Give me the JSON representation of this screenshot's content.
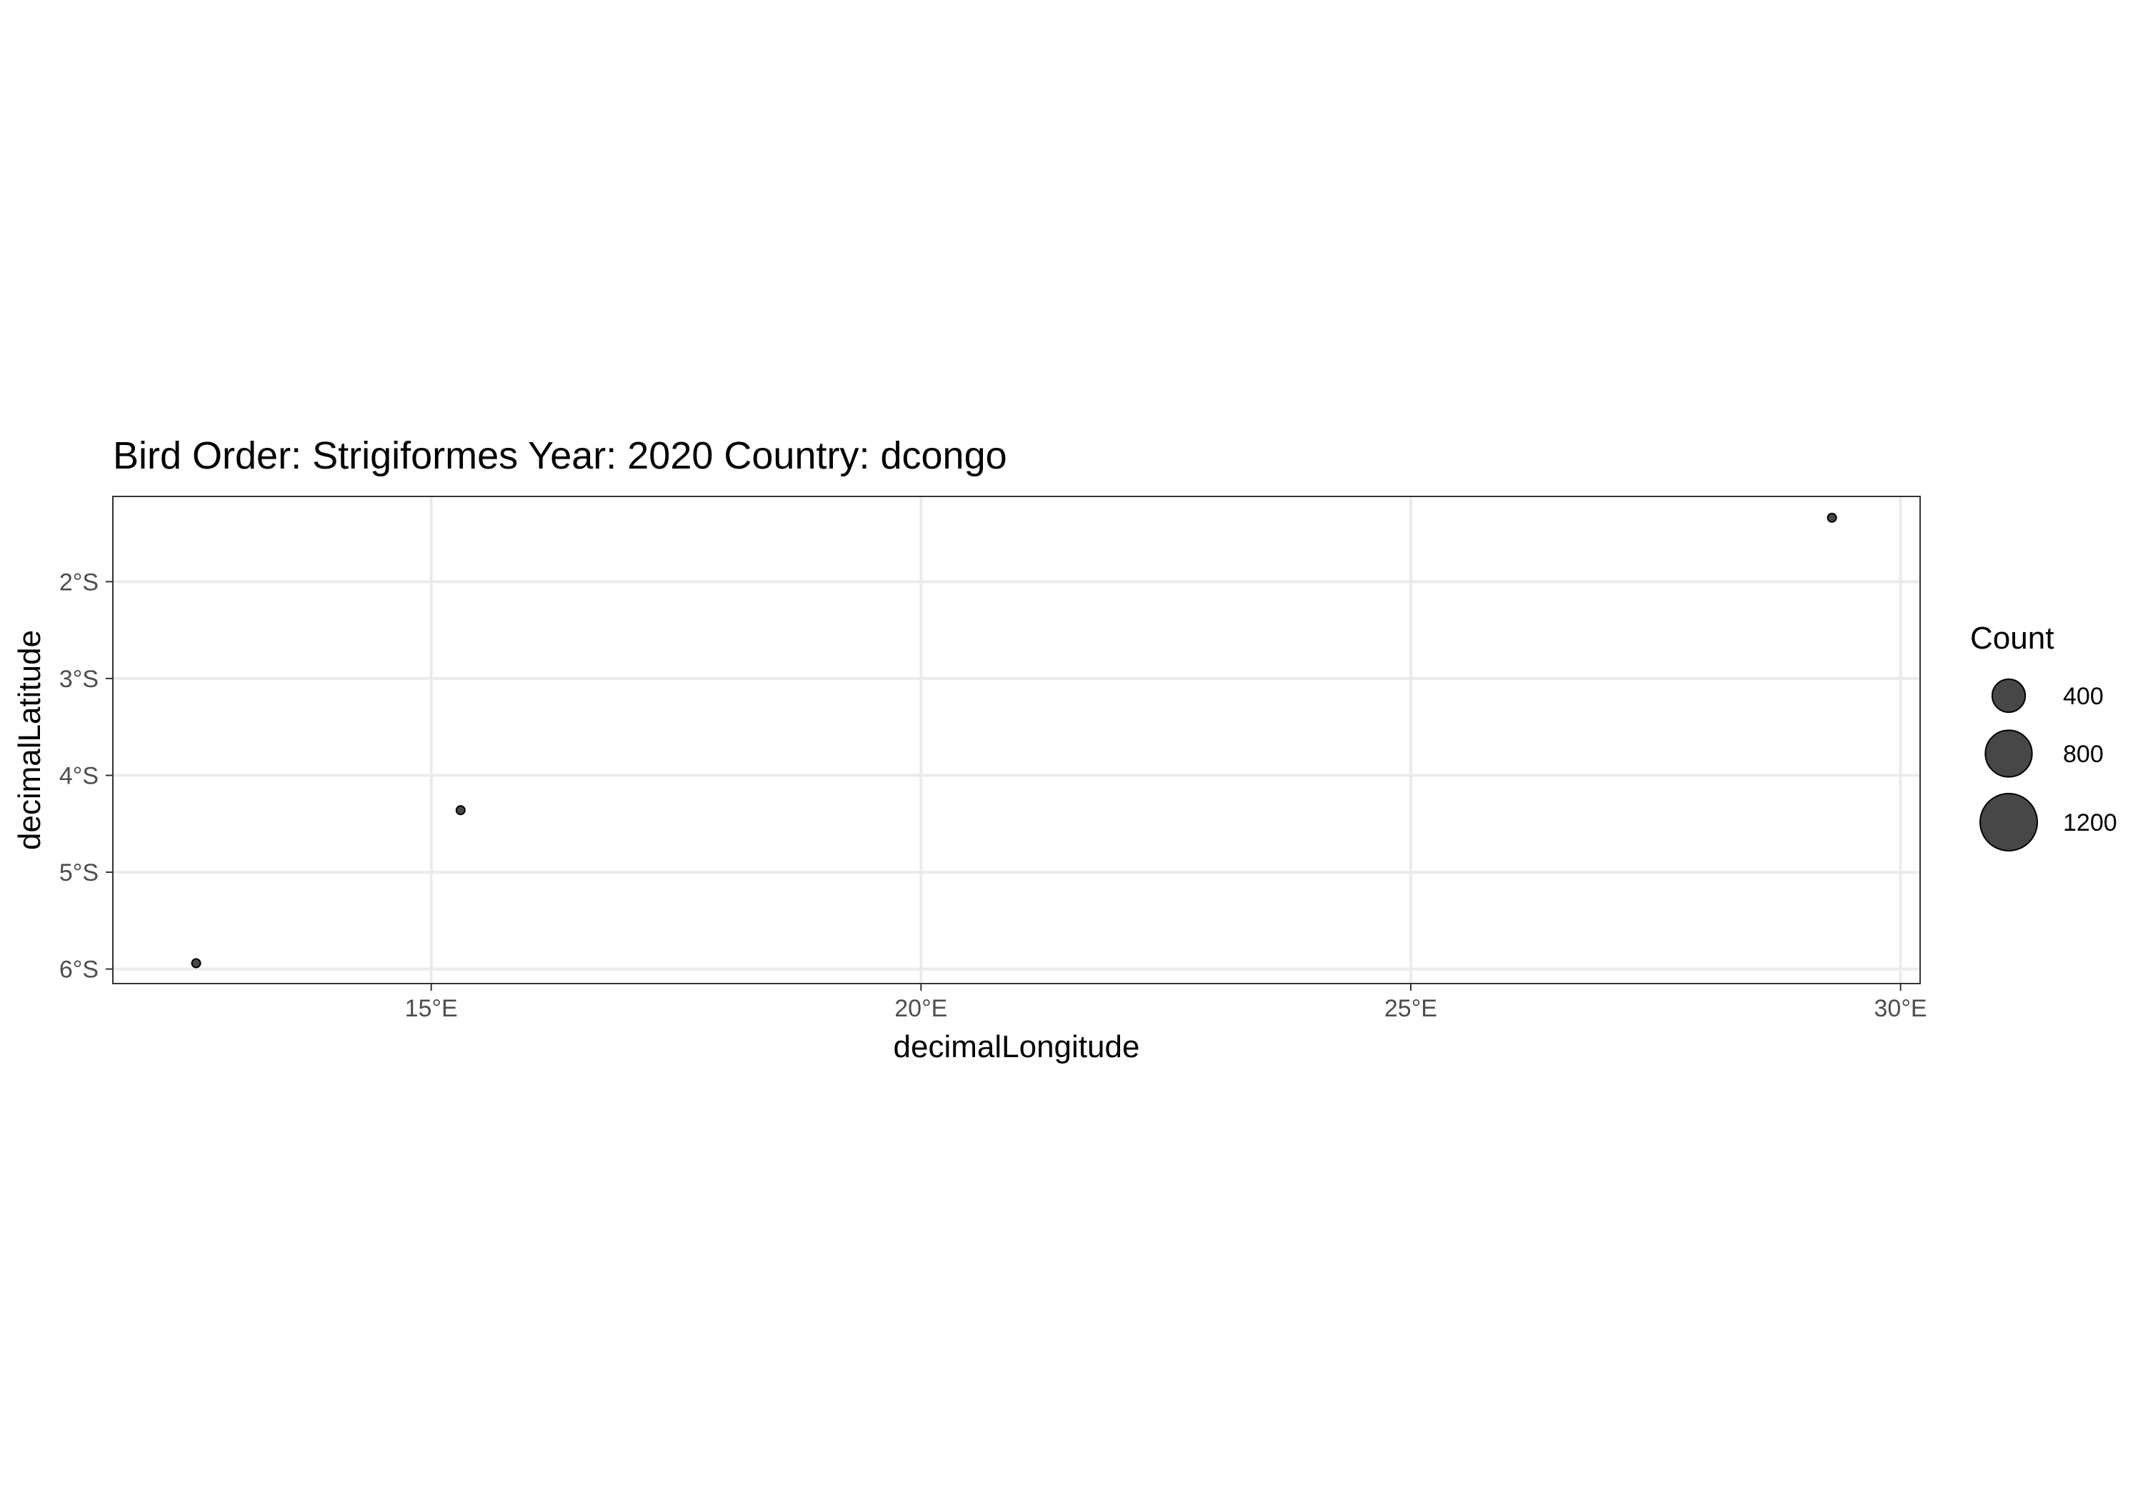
{
  "chart_data": {
    "type": "scatter",
    "title": "Bird Order: Strigiformes Year: 2020 Country: dcongo",
    "xlabel": "decimalLongitude",
    "ylabel": "decimalLatitude",
    "xlim": [
      11.75,
      30.2
    ],
    "ylim": [
      -6.15,
      -1.12
    ],
    "x_ticks": [
      {
        "value": 15,
        "label": "15°E"
      },
      {
        "value": 20,
        "label": "20°E"
      },
      {
        "value": 25,
        "label": "25°E"
      },
      {
        "value": 30,
        "label": "30°E"
      }
    ],
    "y_ticks": [
      {
        "value": -2,
        "label": "2°S"
      },
      {
        "value": -3,
        "label": "3°S"
      },
      {
        "value": -4,
        "label": "4°S"
      },
      {
        "value": -5,
        "label": "5°S"
      },
      {
        "value": -6,
        "label": "6°S"
      }
    ],
    "grid": true,
    "legend_position": "right",
    "point_color": "#333333",
    "points": [
      {
        "x": 12.6,
        "y": -5.94,
        "count": 5
      },
      {
        "x": 15.3,
        "y": -4.36,
        "count": 5
      },
      {
        "x": 29.3,
        "y": -1.34,
        "count": 5
      }
    ],
    "legend": {
      "title": "Count",
      "entries": [
        {
          "value": 400,
          "label": "400"
        },
        {
          "value": 800,
          "label": "800"
        },
        {
          "value": 1200,
          "label": "1200"
        }
      ]
    }
  }
}
